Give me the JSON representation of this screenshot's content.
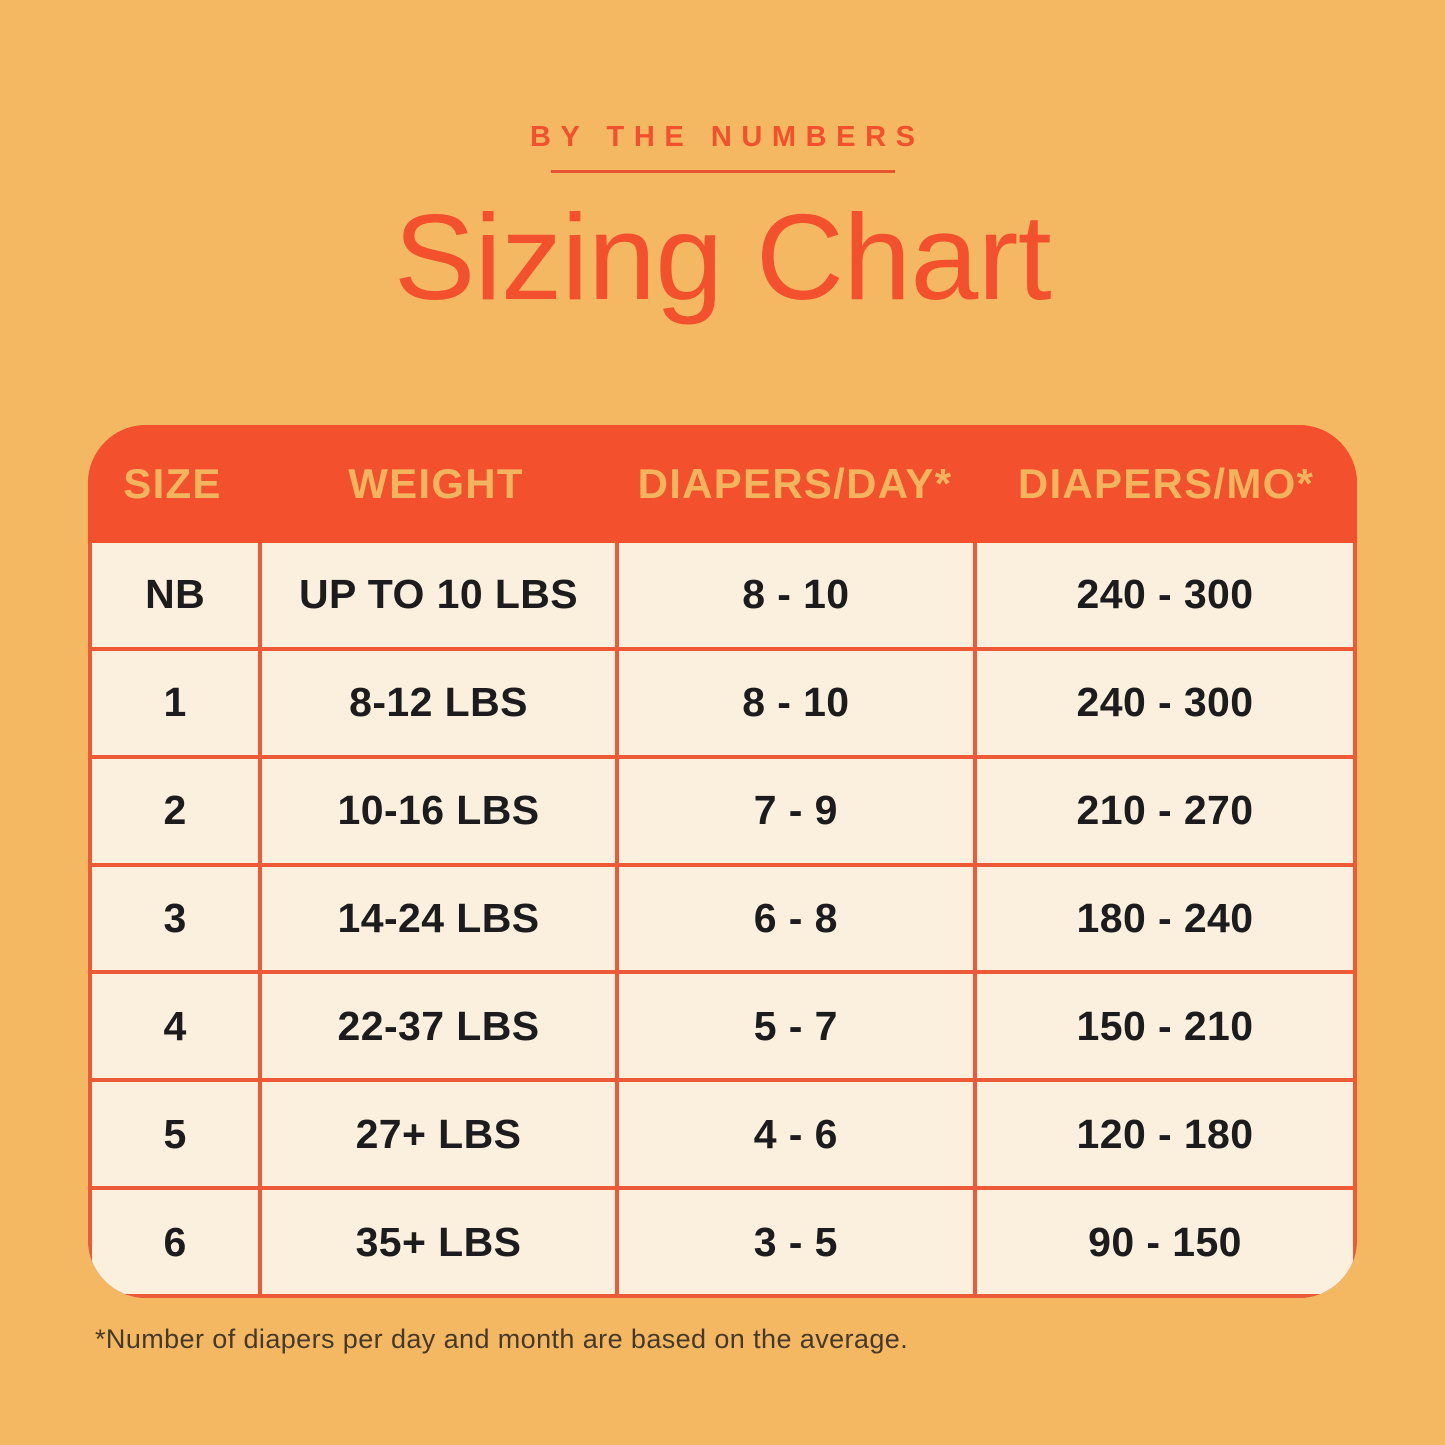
{
  "header": {
    "eyebrow": "BY THE NUMBERS",
    "title": "Sizing Chart"
  },
  "footnote": "*Number of diapers per day and month are based on the average.",
  "colors": {
    "background": "#F4B862",
    "accent": "#F3502D",
    "grid_line": "#EC5A38",
    "cell_background": "#FBF0DE",
    "header_text": "#F2B55E",
    "cell_text": "#1C1C1E",
    "footnote_text": "#46392B"
  },
  "chart_data": {
    "type": "table",
    "title": "Sizing Chart",
    "subtitle": "BY THE NUMBERS",
    "columns": [
      "SIZE",
      "WEIGHT",
      "DIAPERS/DAY*",
      "DIAPERS/MO*"
    ],
    "rows": [
      [
        "NB",
        "UP TO 10 LBS",
        "8 - 10",
        "240 - 300"
      ],
      [
        "1",
        "8-12 LBS",
        "8 - 10",
        "240 - 300"
      ],
      [
        "2",
        "10-16 LBS",
        "7 - 9",
        "210 - 270"
      ],
      [
        "3",
        "14-24 LBS",
        "6 - 8",
        "180 - 240"
      ],
      [
        "4",
        "22-37 LBS",
        "5 - 7",
        "150 - 210"
      ],
      [
        "5",
        "27+ LBS",
        "4 - 6",
        "120 - 180"
      ],
      [
        "6",
        "35+ LBS",
        "3 - 5",
        "90 - 150"
      ]
    ],
    "footnote": "*Number of diapers per day and month are based on the average."
  }
}
